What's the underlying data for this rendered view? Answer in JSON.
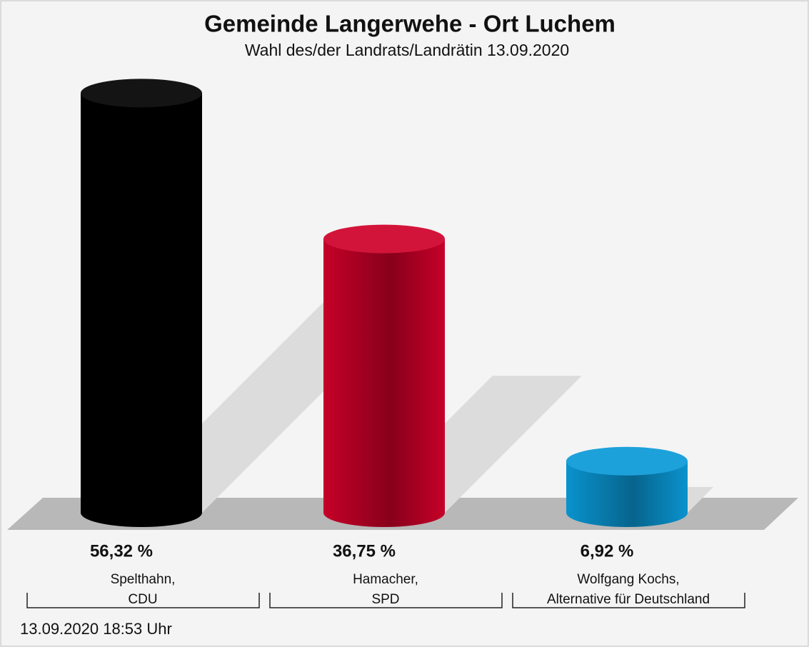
{
  "chart_data": {
    "type": "bar",
    "title": "Gemeinde Langerwehe - Ort Luchem",
    "subtitle": "Wahl des/der Landrats/Landrätin 13.09.2020",
    "categories": [
      [
        "Spelthahn,",
        "CDU"
      ],
      [
        "Hamacher,",
        "SPD"
      ],
      [
        "Wolfgang Kochs,",
        "Alternative für Deutschland"
      ]
    ],
    "values": [
      56.32,
      36.75,
      6.92
    ],
    "value_labels": [
      "56,32 %",
      "36,75 %",
      "6,92 %"
    ],
    "colors": [
      "#000000",
      "#d0002a",
      "#0a9ad8"
    ],
    "ylim": [
      0,
      60
    ],
    "footer": "13.09.2020 18:53 Uhr"
  }
}
